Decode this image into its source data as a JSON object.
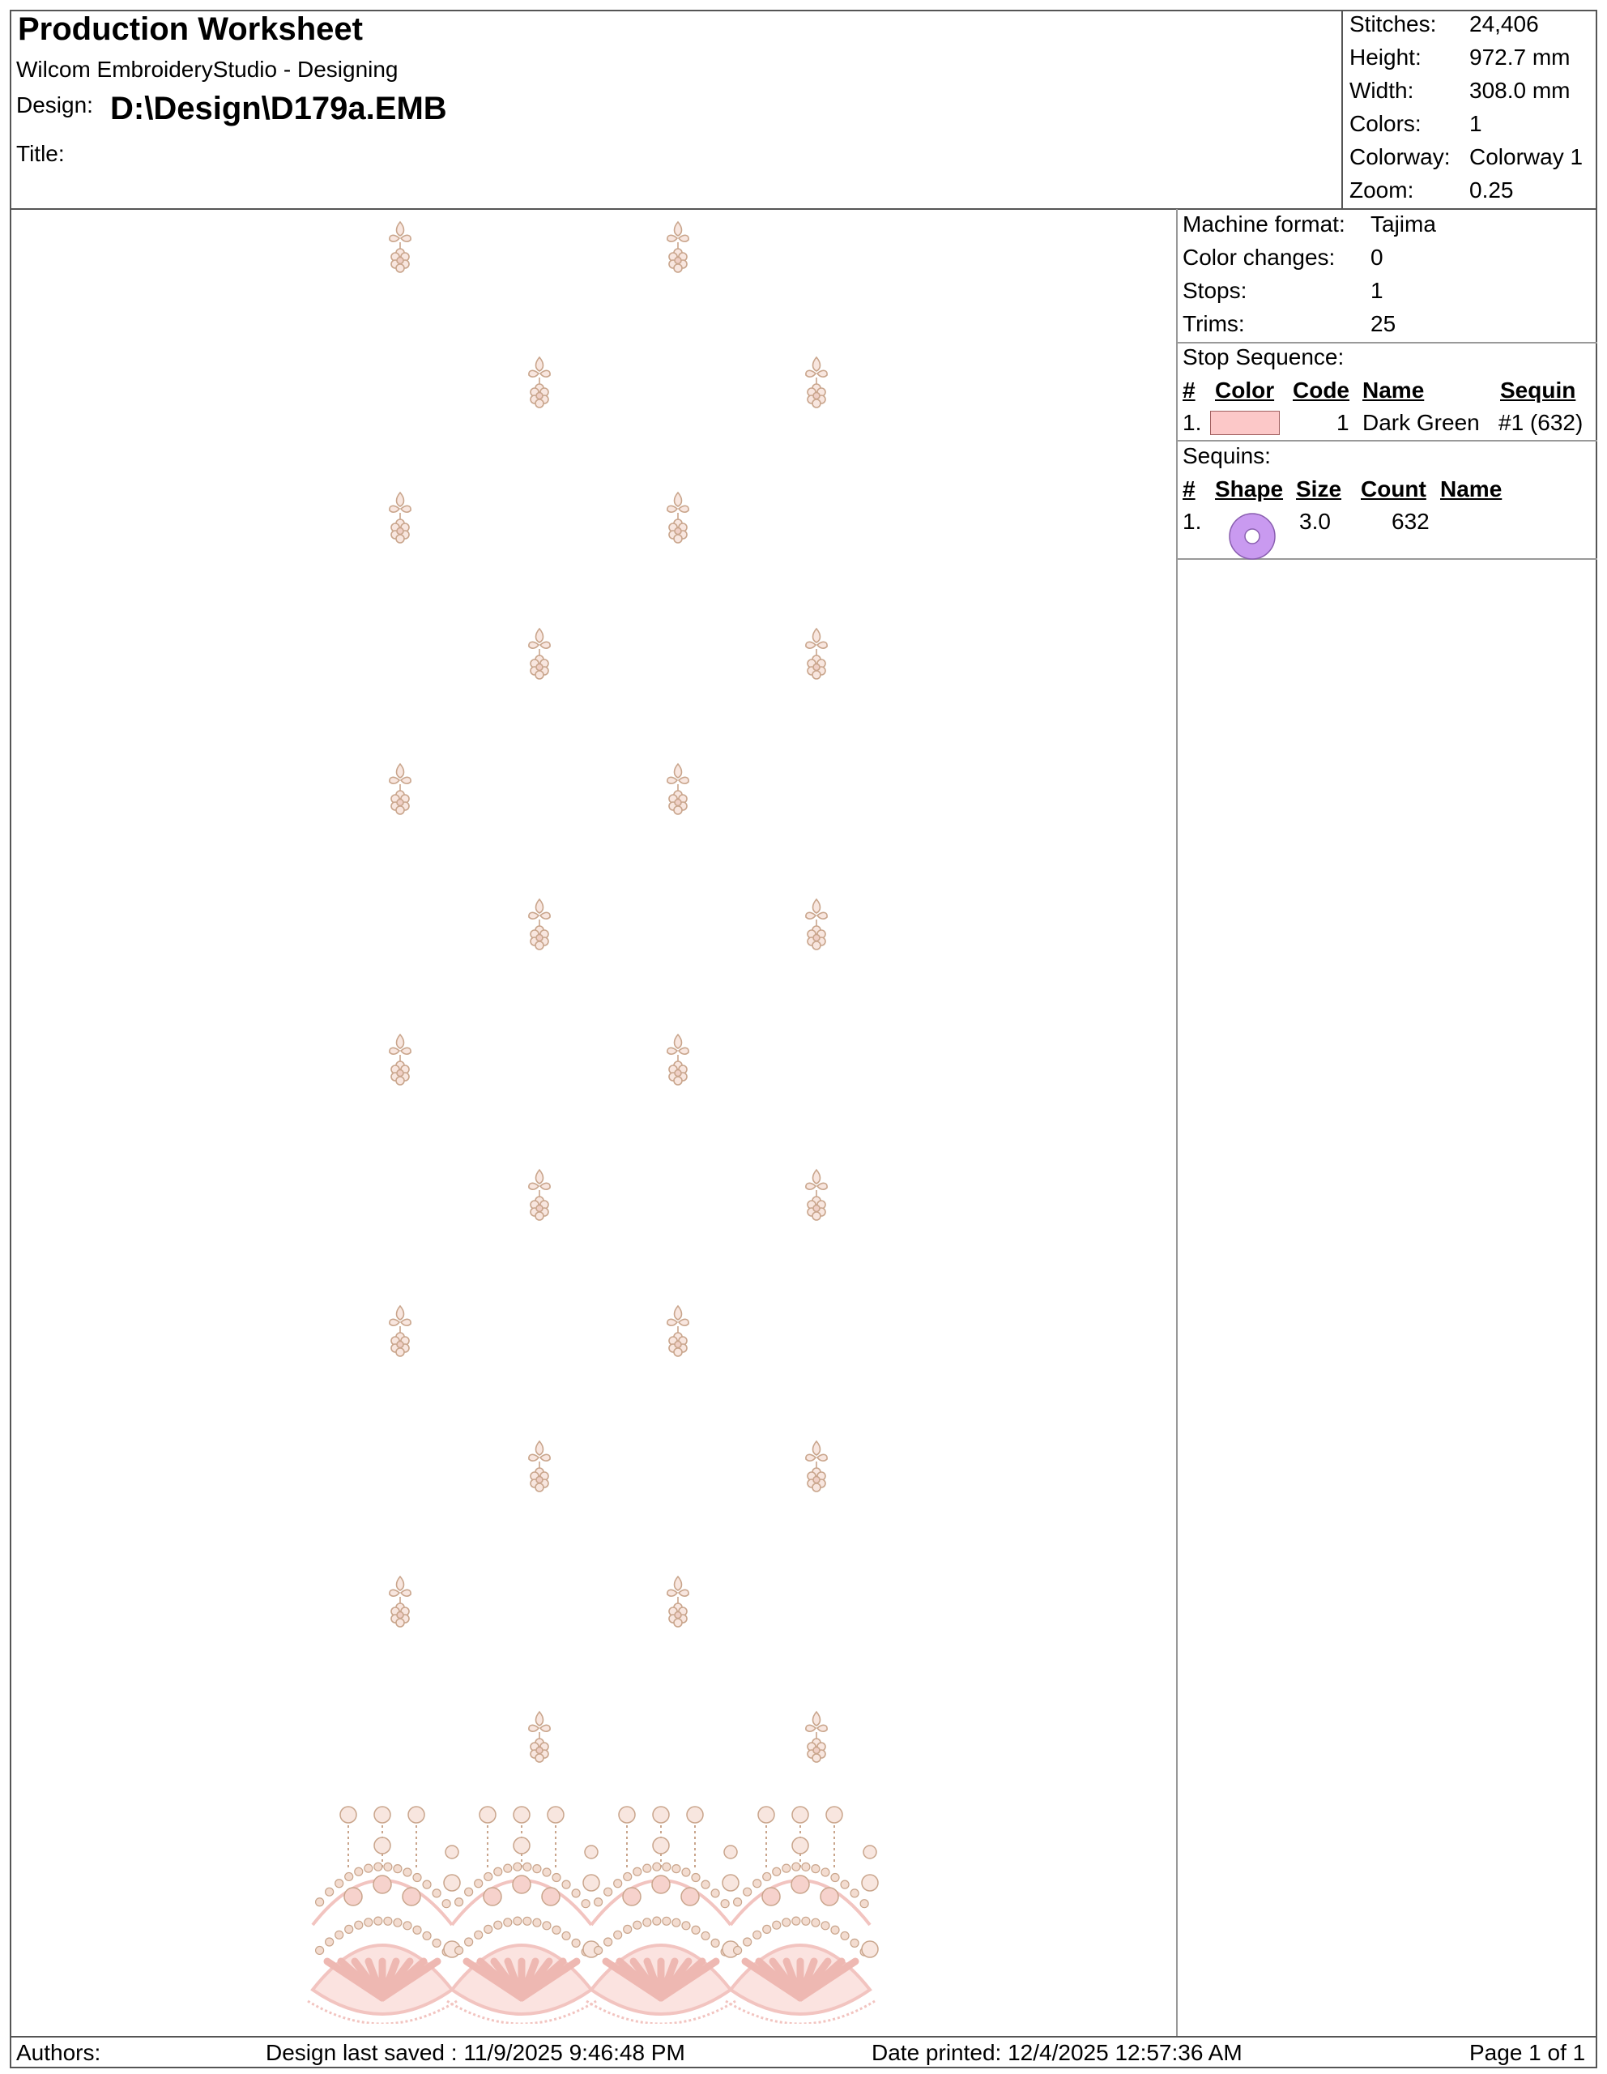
{
  "header": {
    "title": "Production Worksheet",
    "subtitle": "Wilcom EmbroideryStudio - Designing",
    "design_label": "Design:",
    "design_value": "D:\\Design\\D179a.EMB",
    "title_label": "Title:"
  },
  "stats": [
    {
      "label": "Stitches:",
      "value": "24,406"
    },
    {
      "label": "Height:",
      "value": "972.7 mm"
    },
    {
      "label": "Width:",
      "value": "308.0 mm"
    },
    {
      "label": "Colors:",
      "value": "1"
    },
    {
      "label": "Colorway:",
      "value": "Colorway 1"
    },
    {
      "label": "Zoom:",
      "value": "0.25"
    }
  ],
  "machine": [
    {
      "label": "Machine format:",
      "value": "Tajima"
    },
    {
      "label": "Color changes:",
      "value": "0"
    },
    {
      "label": "Stops:",
      "value": "1"
    },
    {
      "label": "Trims:",
      "value": "25"
    }
  ],
  "stop_sequence": {
    "title": "Stop Sequence:",
    "columns": [
      "#",
      "Color",
      "Code",
      "Name",
      "Sequin"
    ],
    "rows": [
      {
        "num": "1.",
        "color": "#fcc8c8",
        "code": "1",
        "name": "Dark Green",
        "sequin": "#1 (632)"
      }
    ]
  },
  "sequins": {
    "title": "Sequins:",
    "columns": [
      "#",
      "Shape",
      "Size",
      "Count",
      "Name"
    ],
    "rows": [
      {
        "num": "1.",
        "shape": "circle-sequin-icon",
        "shape_color": "#c99af0",
        "size": "3.0",
        "count": "632",
        "name": ""
      }
    ]
  },
  "footer": {
    "authors_label": "Authors:",
    "last_saved": "Design last saved : 11/9/2025 9:46:48 PM",
    "date_printed": "Date printed: 12/4/2025 12:57:36 AM",
    "page": "Page 1 of 1"
  },
  "design_colors": {
    "thread": "#f2c4c0",
    "outline": "#c9a58c"
  }
}
